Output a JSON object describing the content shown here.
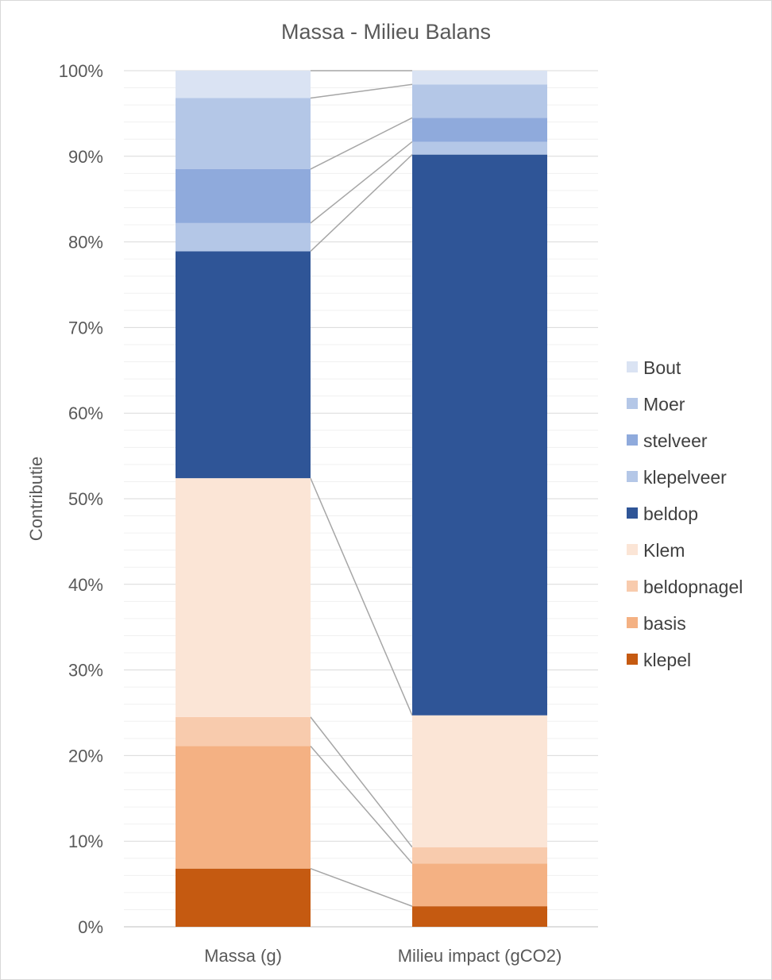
{
  "chart_data": {
    "type": "bar",
    "stacked": "percent",
    "title": "Massa - Milieu Balans",
    "xlabel": "",
    "ylabel": "Contributie",
    "ylim": [
      0,
      100
    ],
    "yticks": [
      "0%",
      "10%",
      "20%",
      "30%",
      "40%",
      "50%",
      "60%",
      "70%",
      "80%",
      "90%",
      "100%"
    ],
    "categories": [
      "Massa (g)",
      "Milieu impact (gCO2)"
    ],
    "legend_position": "right",
    "series_lines": true,
    "series": [
      {
        "name": "klepel",
        "color": "#c55a11",
        "values": [
          6.8,
          2.4
        ]
      },
      {
        "name": "basis",
        "color": "#f4b183",
        "values": [
          14.3,
          5.0
        ]
      },
      {
        "name": "beldopnagel",
        "color": "#f8cbad",
        "values": [
          3.4,
          1.9
        ]
      },
      {
        "name": "Klem",
        "color": "#fbe5d6",
        "values": [
          27.9,
          15.4
        ]
      },
      {
        "name": "beldop",
        "color": "#2f5597",
        "values": [
          26.5,
          65.5
        ]
      },
      {
        "name": "klepelveer",
        "color": "#b4c7e7",
        "values": [
          3.3,
          1.5
        ]
      },
      {
        "name": "stelveer",
        "color": "#8faadc",
        "values": [
          6.3,
          2.8
        ]
      },
      {
        "name": "Moer",
        "color": "#b4c7e7",
        "values": [
          8.3,
          3.9
        ]
      },
      {
        "name": "Bout",
        "color": "#dae3f3",
        "values": [
          3.2,
          1.6
        ]
      }
    ]
  }
}
